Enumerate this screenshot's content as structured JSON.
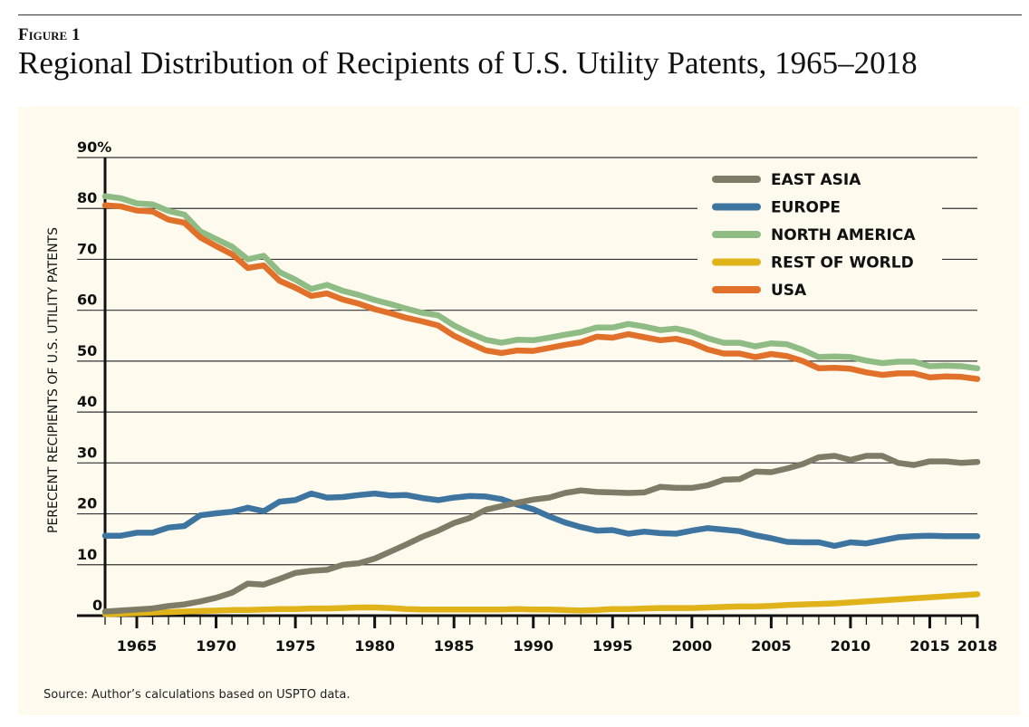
{
  "figure_label": "Figure 1",
  "title": "Regional Distribution of Recipients of U.S. Utility Patents, 1965–2018",
  "source": "Source: Author’s calculations based on USPTO data.",
  "chart_data": {
    "type": "line",
    "title": "Regional Distribution of Recipients of U.S. Utility Patents, 1965–2018",
    "xlabel": "",
    "ylabel": "PERECENT RECIPIENTS OF U.S. UTILITY PATENTS",
    "xlim": [
      1963,
      2018
    ],
    "ylim": [
      0,
      90
    ],
    "grid": true,
    "legend_position": "top-right",
    "x_tick_labels": [
      "1965",
      "1970",
      "1975",
      "1980",
      "1985",
      "1990",
      "1995",
      "2000",
      "2005",
      "2010",
      "2015",
      "2018"
    ],
    "x_tick_values": [
      1965,
      1970,
      1975,
      1980,
      1985,
      1990,
      1995,
      2000,
      2005,
      2010,
      2015,
      2018
    ],
    "y_tick_labels": [
      "0",
      "10",
      "20",
      "30",
      "40",
      "50",
      "60",
      "70",
      "80",
      "90%"
    ],
    "y_tick_values": [
      0,
      10,
      20,
      30,
      40,
      50,
      60,
      70,
      80,
      90
    ],
    "x": [
      1963,
      1964,
      1965,
      1966,
      1967,
      1968,
      1969,
      1970,
      1971,
      1972,
      1973,
      1974,
      1975,
      1976,
      1977,
      1978,
      1979,
      1980,
      1981,
      1982,
      1983,
      1984,
      1985,
      1986,
      1987,
      1988,
      1989,
      1990,
      1991,
      1992,
      1993,
      1994,
      1995,
      1996,
      1997,
      1998,
      1999,
      2000,
      2001,
      2002,
      2003,
      2004,
      2005,
      2006,
      2007,
      2008,
      2009,
      2010,
      2011,
      2012,
      2013,
      2014,
      2015,
      2016,
      2017,
      2018
    ],
    "series": [
      {
        "name": "EAST ASIA",
        "color": "#7e7b66",
        "values": [
          0.8,
          1.0,
          1.2,
          1.4,
          1.9,
          2.2,
          2.8,
          3.5,
          4.5,
          6.3,
          6.1,
          7.2,
          8.4,
          8.8,
          9.0,
          10.0,
          10.3,
          11.2,
          12.6,
          14.0,
          15.5,
          16.7,
          18.2,
          19.2,
          20.8,
          21.5,
          22.2,
          22.8,
          23.2,
          24.1,
          24.6,
          24.3,
          24.2,
          24.1,
          24.2,
          25.3,
          25.1,
          25.1,
          25.6,
          26.7,
          26.8,
          28.3,
          28.2,
          28.9,
          29.8,
          31.1,
          31.4,
          30.6,
          31.4,
          31.4,
          30.0,
          29.6,
          30.3,
          30.3,
          30.0,
          30.2
        ]
      },
      {
        "name": "EUROPE",
        "color": "#3e75a0",
        "values": [
          15.7,
          15.7,
          16.3,
          16.3,
          17.3,
          17.6,
          19.7,
          20.1,
          20.4,
          21.2,
          20.5,
          22.4,
          22.7,
          24.0,
          23.2,
          23.3,
          23.7,
          24.0,
          23.6,
          23.7,
          23.1,
          22.7,
          23.2,
          23.5,
          23.4,
          22.9,
          21.8,
          20.9,
          19.5,
          18.3,
          17.4,
          16.7,
          16.8,
          16.1,
          16.5,
          16.2,
          16.1,
          16.7,
          17.2,
          16.9,
          16.6,
          15.8,
          15.2,
          14.5,
          14.4,
          14.4,
          13.7,
          14.4,
          14.2,
          14.8,
          15.4,
          15.6,
          15.7,
          15.6,
          15.6,
          15.6
        ]
      },
      {
        "name": "NORTH AMERICA",
        "color": "#8fbb85",
        "values": [
          82.4,
          82.0,
          81.0,
          80.8,
          79.5,
          78.8,
          75.5,
          74.0,
          72.5,
          70.0,
          70.7,
          67.5,
          66.0,
          64.2,
          65.0,
          63.8,
          63.0,
          62.0,
          61.2,
          60.3,
          59.5,
          59.0,
          57.0,
          55.5,
          54.2,
          53.6,
          54.2,
          54.1,
          54.6,
          55.2,
          55.7,
          56.6,
          56.6,
          57.3,
          56.8,
          56.1,
          56.4,
          55.7,
          54.5,
          53.6,
          53.6,
          52.9,
          53.5,
          53.3,
          52.2,
          50.8,
          50.9,
          50.8,
          50.1,
          49.6,
          49.9,
          49.9,
          49.0,
          49.1,
          49.0,
          48.6
        ]
      },
      {
        "name": "REST OF WORLD",
        "color": "#e0b31a",
        "values": [
          0.3,
          0.4,
          0.5,
          0.6,
          0.7,
          0.8,
          0.9,
          1.0,
          1.1,
          1.1,
          1.2,
          1.3,
          1.3,
          1.4,
          1.4,
          1.5,
          1.6,
          1.6,
          1.5,
          1.3,
          1.2,
          1.2,
          1.2,
          1.2,
          1.2,
          1.2,
          1.3,
          1.2,
          1.2,
          1.1,
          1.0,
          1.1,
          1.3,
          1.3,
          1.4,
          1.5,
          1.5,
          1.5,
          1.6,
          1.7,
          1.8,
          1.8,
          1.9,
          2.1,
          2.2,
          2.3,
          2.4,
          2.6,
          2.8,
          3.0,
          3.2,
          3.4,
          3.6,
          3.8,
          4.0,
          4.2
        ]
      },
      {
        "name": "USA",
        "color": "#e0702a",
        "values": [
          80.6,
          80.4,
          79.6,
          79.4,
          77.8,
          77.2,
          74.3,
          72.6,
          71.0,
          68.3,
          68.8,
          65.8,
          64.4,
          62.8,
          63.3,
          62.1,
          61.3,
          60.2,
          59.4,
          58.5,
          57.8,
          57.0,
          55.0,
          53.5,
          52.1,
          51.6,
          52.1,
          52.0,
          52.6,
          53.2,
          53.7,
          54.8,
          54.6,
          55.3,
          54.7,
          54.1,
          54.4,
          53.6,
          52.3,
          51.5,
          51.5,
          50.8,
          51.4,
          51.0,
          50.0,
          48.6,
          48.7,
          48.5,
          47.8,
          47.3,
          47.6,
          47.6,
          46.8,
          47.0,
          46.9,
          46.5
        ]
      }
    ],
    "draw_order": [
      "NORTH AMERICA",
      "USA",
      "REST OF WORLD",
      "EUROPE",
      "EAST ASIA"
    ]
  }
}
